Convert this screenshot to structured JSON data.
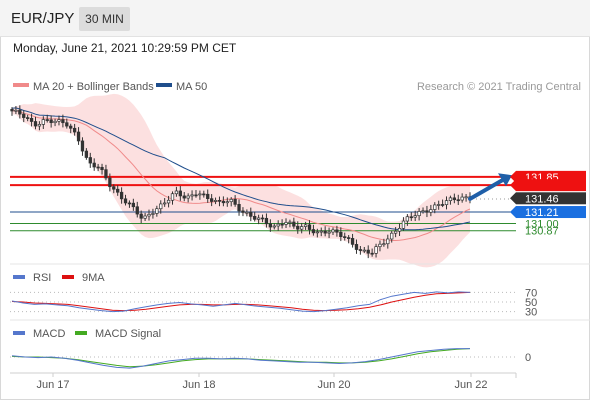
{
  "header": {
    "symbol": "EUR/JPY",
    "timeframe": "30 MIN"
  },
  "datetime": "Monday, June 21, 2021 10:29:59 PM CET",
  "colors": {
    "candle": "#333333",
    "ma20": "#f08a8a",
    "band_fill": "#fbdada",
    "ma50": "#1f4e8c",
    "resistance": "#ee1111",
    "support_blue": "#1f4e8c",
    "support_green": "#2e8b2e",
    "rsi": "#5577cc",
    "rsi_ma": "#dd1111",
    "macd": "#5577cc",
    "macd_signal": "#44aa22",
    "arrow": "#1f5fa8"
  },
  "main_legend": [
    {
      "label": "MA 20 + Bollinger Bands",
      "color": "#f08a8a"
    },
    {
      "label": "MA 50",
      "color": "#1f4e8c"
    }
  ],
  "credit": "Research © 2021 Trading Central",
  "chart_data": [
    {
      "type": "candlestick",
      "x_labels": [
        "Jun 17",
        "Jun 18",
        "Jun 20",
        "Jun 22"
      ],
      "current_price": 131.46,
      "levels": [
        {
          "label": "131.85",
          "value": 131.85,
          "style": "resistance",
          "line_color": "#ee1111",
          "box_color": "#ee1111"
        },
        {
          "label": "",
          "value": 131.7,
          "style": "resistance",
          "line_color": "#ee1111",
          "box_color": "#ee1111"
        },
        {
          "label": "131.46",
          "value": 131.46,
          "style": "current",
          "line_color": "#ffffff",
          "box_color": "#333333"
        },
        {
          "label": "131.21",
          "value": 131.21,
          "style": "pivot",
          "line_color": "#1f4e8c",
          "box_color": "#1a6fe0"
        },
        {
          "label": "131.00",
          "value": 131.0,
          "style": "support",
          "line_color": "#2e8b2e",
          "box_color": "none"
        },
        {
          "label": "130.87",
          "value": 130.87,
          "style": "support",
          "line_color": "#2e8b2e",
          "box_color": "none"
        }
      ],
      "price_path": [
        133.05,
        132.95,
        132.8,
        132.9,
        132.85,
        132.8,
        132.6,
        132.1,
        132.0,
        131.7,
        131.5,
        131.3,
        131.05,
        131.25,
        131.4,
        131.55,
        131.45,
        131.6,
        131.45,
        131.35,
        131.45,
        131.25,
        131.1,
        131.05,
        130.95,
        131.05,
        130.9,
        130.95,
        130.85,
        130.85,
        130.8,
        130.7,
        130.5,
        130.45,
        130.65,
        130.85,
        131.05,
        131.15,
        131.25,
        131.35,
        131.4,
        131.45,
        131.5
      ]
    },
    {
      "type": "line",
      "legend": [
        {
          "label": "RSI",
          "color": "#5577cc"
        },
        {
          "label": "9MA",
          "color": "#dd1111"
        }
      ],
      "y_labels": [
        "70",
        "50",
        "30"
      ],
      "rsi": [
        52,
        48,
        45,
        46,
        44,
        42,
        38,
        35,
        32,
        30,
        31,
        36,
        40,
        44,
        47,
        49,
        46,
        44,
        41,
        44,
        47,
        44,
        41,
        39,
        37,
        34,
        31,
        30,
        32,
        35,
        38,
        42,
        45,
        55,
        62,
        66,
        70,
        68,
        71,
        69,
        71,
        70
      ],
      "rsi_ma": [
        51,
        50,
        48,
        47,
        46,
        45,
        42,
        39,
        36,
        33,
        32,
        33,
        35,
        38,
        41,
        44,
        45,
        45,
        44,
        44,
        45,
        45,
        44,
        42,
        40,
        38,
        35,
        33,
        32,
        33,
        34,
        36,
        39,
        44,
        50,
        55,
        60,
        64,
        67,
        68,
        69,
        70
      ]
    },
    {
      "type": "line",
      "legend": [
        {
          "label": "MACD",
          "color": "#5577cc"
        },
        {
          "label": "MACD Signal",
          "color": "#44aa22"
        }
      ],
      "y_labels": [
        "0"
      ],
      "macd": [
        0.02,
        0.0,
        -0.01,
        0.0,
        -0.02,
        -0.05,
        -0.09,
        -0.13,
        -0.16,
        -0.17,
        -0.14,
        -0.1,
        -0.06,
        -0.04,
        -0.02,
        -0.02,
        -0.03,
        -0.02,
        -0.03,
        -0.05,
        -0.06,
        -0.07,
        -0.08,
        -0.08,
        -0.09,
        -0.1,
        -0.09,
        -0.07,
        -0.04,
        0.0,
        0.04,
        0.08,
        0.1,
        0.12,
        0.13,
        0.13
      ],
      "macd_signal": [
        0.01,
        0.0,
        0.0,
        -0.01,
        -0.02,
        -0.04,
        -0.07,
        -0.1,
        -0.13,
        -0.15,
        -0.14,
        -0.12,
        -0.09,
        -0.06,
        -0.04,
        -0.03,
        -0.03,
        -0.03,
        -0.03,
        -0.04,
        -0.05,
        -0.06,
        -0.07,
        -0.08,
        -0.08,
        -0.09,
        -0.09,
        -0.08,
        -0.06,
        -0.03,
        0.01,
        0.05,
        0.08,
        0.1,
        0.12,
        0.13
      ]
    }
  ]
}
